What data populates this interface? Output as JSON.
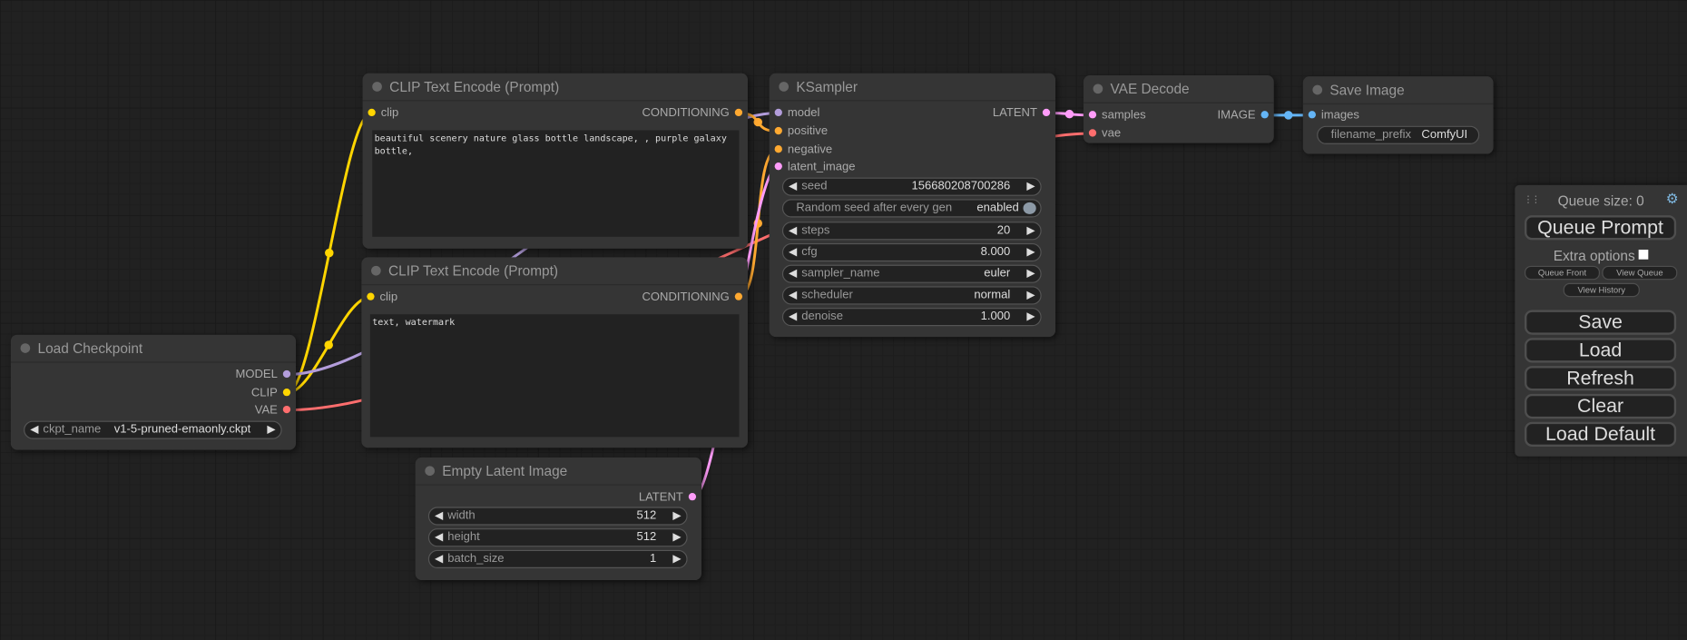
{
  "colors": {
    "clip": "#ffd500",
    "model": "#b39ddb",
    "vae": "#ff6e6e",
    "conditioning": "#ffa931",
    "latent": "#ff9cf9",
    "image": "#64b5f6"
  },
  "nodes": {
    "clip_pos": {
      "title": "CLIP Text Encode (Prompt)",
      "input": "clip",
      "output": "CONDITIONING",
      "text": "beautiful scenery nature glass bottle landscape, , purple galaxy bottle,"
    },
    "clip_neg": {
      "title": "CLIP Text Encode (Prompt)",
      "input": "clip",
      "output": "CONDITIONING",
      "text": "text, watermark"
    },
    "checkpoint": {
      "title": "Load Checkpoint",
      "outputs": [
        "MODEL",
        "CLIP",
        "VAE"
      ],
      "ckpt_label": "ckpt_name",
      "ckpt_value": "v1-5-pruned-emaonly.ckpt"
    },
    "latent": {
      "title": "Empty Latent Image",
      "output": "LATENT",
      "widgets": [
        {
          "label": "width",
          "value": "512"
        },
        {
          "label": "height",
          "value": "512"
        },
        {
          "label": "batch_size",
          "value": "1"
        }
      ]
    },
    "ksampler": {
      "title": "KSampler",
      "inputs": [
        "model",
        "positive",
        "negative",
        "latent_image"
      ],
      "output": "LATENT",
      "seed": {
        "label": "seed",
        "value": "156680208700286"
      },
      "random_seed": {
        "label": "Random seed after every gen",
        "value": "enabled"
      },
      "widgets": [
        {
          "label": "steps",
          "value": "20"
        },
        {
          "label": "cfg",
          "value": "8.000"
        },
        {
          "label": "sampler_name",
          "value": "euler"
        },
        {
          "label": "scheduler",
          "value": "normal"
        },
        {
          "label": "denoise",
          "value": "1.000"
        }
      ]
    },
    "vae_decode": {
      "title": "VAE Decode",
      "inputs": [
        "samples",
        "vae"
      ],
      "output": "IMAGE"
    },
    "save_image": {
      "title": "Save Image",
      "input": "images",
      "prefix_label": "filename_prefix",
      "prefix_value": "ComfyUI"
    }
  },
  "panel": {
    "queue_size": "Queue size: 0",
    "queue_prompt": "Queue Prompt",
    "extra_options": "Extra options",
    "queue_front": "Queue Front",
    "view_queue": "View Queue",
    "view_history": "View History",
    "save": "Save",
    "load": "Load",
    "refresh": "Refresh",
    "clear": "Clear",
    "load_default": "Load Default"
  },
  "icons": {
    "arrow_left": "◀",
    "arrow_right": "▶",
    "drag": "⋮⋮",
    "gear": "⚙"
  }
}
